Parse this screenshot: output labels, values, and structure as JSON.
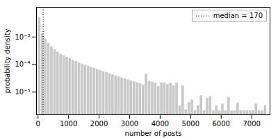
{
  "chart_data": {
    "type": "histogram",
    "xlabel": "number of posts",
    "ylabel": "probability density",
    "bins": [
      0,
      100,
      200,
      300,
      400,
      500,
      600,
      700,
      800,
      900,
      1000,
      1100,
      1200,
      1300,
      1400,
      1500,
      1600,
      1700,
      1800,
      1900,
      2000,
      2100,
      2200,
      2300,
      2400,
      2500,
      2600,
      2700,
      2800,
      2900,
      3000,
      3100,
      3200,
      3300,
      3400,
      3500,
      3600,
      3700,
      3800,
      3900,
      4000,
      4100,
      4200,
      4300,
      4400,
      4500,
      4600,
      4700,
      4800,
      4900,
      5000,
      5100,
      5200,
      5300,
      5400,
      5500,
      5600,
      5700,
      5800,
      5900,
      6000,
      6100,
      6200,
      6300,
      6400,
      6500,
      6600,
      6700,
      6800,
      6900,
      7000,
      7100,
      7200,
      7300,
      7400,
      7500
    ],
    "values": [
      0.0052,
      0.0013,
      0.00085,
      0.0006,
      0.00045,
      0.00035,
      0.00028,
      0.00024,
      0.00021,
      0.000185,
      0.000165,
      0.000145,
      0.00013,
      0.000115,
      0.000105,
      9.5e-05,
      8.8e-05,
      8e-05,
      7.3e-05,
      6.7e-05,
      6.1e-05,
      5.6e-05,
      5.1e-05,
      4.7e-05,
      4.3e-05,
      3.9e-05,
      3.6e-05,
      3.3e-05,
      3e-05,
      2.8e-05,
      2.6e-05,
      2.4e-05,
      2.2e-05,
      2e-05,
      1.8e-05,
      4.5e-05,
      2.5e-05,
      2.3e-05,
      2.1e-05,
      1.6e-05,
      2.2e-05,
      2.2e-05,
      1.9e-05,
      2.1e-05,
      1.7e-05,
      2.1e-05,
      3.2e-06,
      1.7e-05,
      2.3e-06,
      4.2e-06,
      5.2e-06,
      2.1e-06,
      3.2e-06,
      7.5e-06,
      2.1e-06,
      6e-06,
      7e-06,
      2.1e-06,
      3.2e-06,
      2.1e-06,
      3.7e-06,
      2.1e-06,
      6.5e-06,
      2.1e-06,
      2.1e-06,
      4e-06,
      2.1e-06,
      2.1e-06,
      2.1e-06,
      2.1e-06,
      2.1e-06,
      3.7e-06,
      2.1e-06,
      2.1e-06,
      3.2e-06
    ],
    "color": "#c8c8c8",
    "log": "y",
    "xlim": [
      -50,
      7600
    ],
    "ylim": [
      1.5e-06,
      0.012
    ],
    "xticks": [
      0,
      1000,
      2000,
      3000,
      4000,
      5000,
      6000,
      7000
    ],
    "yticks": [
      {
        "value": 1e-05,
        "label": "10⁻⁵"
      },
      {
        "value": 0.0001,
        "label": "10⁻⁴"
      },
      {
        "value": 0.001,
        "label": "10⁻³"
      }
    ],
    "reference_lines": [
      {
        "x": 170,
        "name": "median = 170",
        "color": "black",
        "line_style": "dotted"
      }
    ],
    "legend": "upper right",
    "grid": false
  }
}
